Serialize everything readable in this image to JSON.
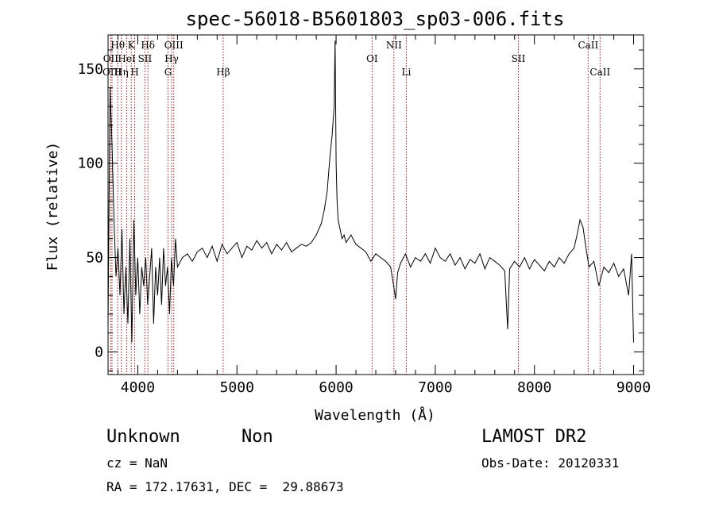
{
  "chart_data": {
    "type": "line",
    "title": "spec-56018-B5601803_sp03-006.fits",
    "xlabel": "Wavelength (Å)",
    "ylabel": "Flux (relative)",
    "xlim": [
      3700,
      9100
    ],
    "ylim": [
      -12,
      168
    ],
    "xticks": [
      4000,
      5000,
      6000,
      7000,
      8000,
      9000
    ],
    "yticks": [
      0,
      50,
      100,
      150
    ],
    "grid": false,
    "line_color": "#000000",
    "marker_color": "#8b1a1a",
    "spectral_lines": [
      {
        "label": "OII",
        "wavelength": 3727,
        "row": 2
      },
      {
        "label": "OIII",
        "wavelength": 3740,
        "row": 3
      },
      {
        "label": "Hθ",
        "wavelength": 3798,
        "row": 1
      },
      {
        "label": "Hη",
        "wavelength": 3835,
        "row": 3
      },
      {
        "label": "HeI",
        "wavelength": 3889,
        "row": 2
      },
      {
        "label": "K",
        "wavelength": 3934,
        "row": 1
      },
      {
        "label": "H",
        "wavelength": 3969,
        "row": 3
      },
      {
        "label": "SII",
        "wavelength": 4072,
        "row": 2
      },
      {
        "label": "Hδ",
        "wavelength": 4102,
        "row": 1
      },
      {
        "label": "G",
        "wavelength": 4305,
        "row": 3
      },
      {
        "label": "Hγ",
        "wavelength": 4341,
        "row": 2
      },
      {
        "label": "OIII",
        "wavelength": 4363,
        "row": 1
      },
      {
        "label": "Hβ",
        "wavelength": 4861,
        "row": 3
      },
      {
        "label": "OI",
        "wavelength": 6363,
        "row": 2
      },
      {
        "label": "NII",
        "wavelength": 6583,
        "row": 1
      },
      {
        "label": "Li",
        "wavelength": 6708,
        "row": 3
      },
      {
        "label": "SII",
        "wavelength": 7838,
        "row": 2
      },
      {
        "label": "CaII",
        "wavelength": 8542,
        "row": 1
      },
      {
        "label": "CaII",
        "wavelength": 8662,
        "row": 3
      }
    ],
    "series": [
      {
        "x": [
          3700,
          3720,
          3740,
          3760,
          3780,
          3800,
          3820,
          3840,
          3860,
          3880,
          3900,
          3920,
          3940,
          3960,
          3980,
          4000,
          4020,
          4040,
          4060,
          4080,
          4100,
          4120,
          4140,
          4160,
          4180,
          4200,
          4220,
          4240,
          4260,
          4280,
          4300,
          4320,
          4340,
          4360,
          4380,
          4400,
          4450,
          4500,
          4550,
          4600,
          4650,
          4700,
          4750,
          4800,
          4850,
          4900,
          4950,
          5000,
          5050,
          5100,
          5150,
          5200,
          5250,
          5300,
          5350,
          5400,
          5450,
          5500,
          5550,
          5600,
          5650,
          5700,
          5750,
          5800,
          5850,
          5880,
          5910,
          5940,
          5960,
          5980,
          5990,
          6000,
          6010,
          6020,
          6040,
          6060,
          6080,
          6100,
          6150,
          6200,
          6250,
          6300,
          6350,
          6400,
          6450,
          6500,
          6550,
          6580,
          6600,
          6620,
          6650,
          6700,
          6750,
          6800,
          6850,
          6900,
          6950,
          7000,
          7050,
          7100,
          7150,
          7200,
          7250,
          7300,
          7350,
          7400,
          7450,
          7500,
          7550,
          7600,
          7650,
          7700,
          7730,
          7750,
          7800,
          7850,
          7900,
          7950,
          8000,
          8050,
          8100,
          8150,
          8200,
          8250,
          8300,
          8350,
          8400,
          8430,
          8460,
          8490,
          8520,
          8550,
          8600,
          8650,
          8700,
          8750,
          8800,
          8850,
          8900,
          8950,
          8980,
          9000
        ],
        "y": [
          15,
          140,
          110,
          70,
          40,
          55,
          30,
          65,
          20,
          45,
          15,
          60,
          5,
          70,
          30,
          50,
          20,
          45,
          35,
          50,
          25,
          40,
          55,
          15,
          45,
          30,
          50,
          25,
          55,
          35,
          45,
          20,
          50,
          35,
          60,
          45,
          50,
          52,
          48,
          53,
          55,
          50,
          56,
          48,
          57,
          52,
          55,
          58,
          50,
          56,
          54,
          59,
          55,
          58,
          52,
          57,
          54,
          58,
          53,
          55,
          57,
          56,
          58,
          62,
          68,
          75,
          85,
          105,
          115,
          130,
          165,
          100,
          80,
          70,
          65,
          60,
          62,
          58,
          62,
          57,
          55,
          53,
          48,
          52,
          50,
          48,
          45,
          35,
          28,
          42,
          47,
          52,
          45,
          50,
          48,
          52,
          47,
          55,
          50,
          48,
          52,
          46,
          50,
          44,
          49,
          47,
          52,
          44,
          50,
          48,
          46,
          43,
          12,
          44,
          48,
          45,
          50,
          44,
          49,
          46,
          43,
          48,
          45,
          50,
          47,
          52,
          55,
          62,
          70,
          66,
          55,
          45,
          48,
          35,
          45,
          42,
          47,
          40,
          44,
          30,
          52,
          5
        ]
      }
    ]
  },
  "footer": {
    "object_class": "Unknown",
    "subclass": "Non",
    "survey": "LAMOST DR2",
    "cz": "cz = NaN",
    "obs_date": "Obs-Date: 20120331",
    "coords": "RA = 172.17631, DEC =  29.88673"
  }
}
